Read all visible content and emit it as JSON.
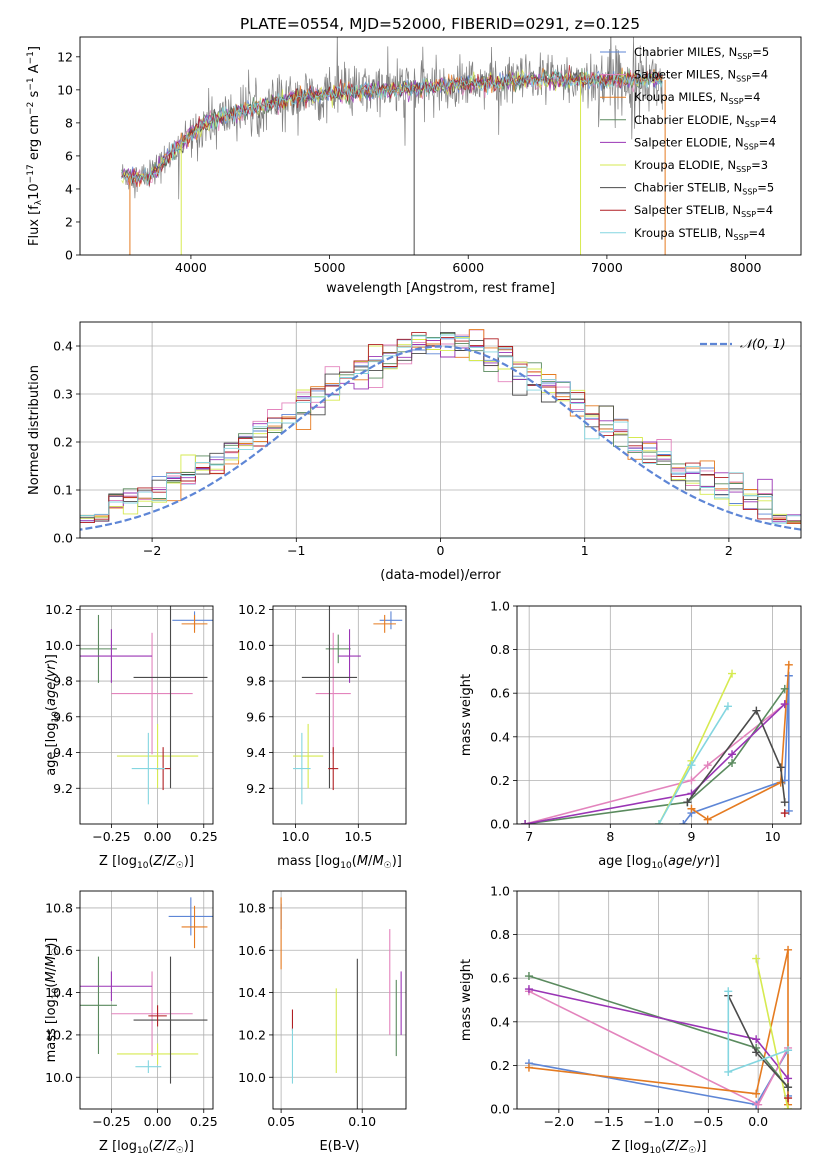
{
  "title": "PLATE=0554, MJD=52000, FIBERID=0291, z=0.125",
  "colors": {
    "Chabrier MILES": "#5e86d6",
    "Salpeter MILES": "#e384bd",
    "Kroupa MILES": "#e57b21",
    "Chabrier ELODIE": "#5a8a5e",
    "Salpeter ELODIE": "#9a35b5",
    "Kroupa ELODIE": "#d6ea50",
    "Chabrier STELIB": "#4b4b4b",
    "Salpeter STELIB": "#b01f23",
    "Kroupa STELIB": "#84d6e0",
    "gaussian": "#5e86d6"
  },
  "chart_data": [
    {
      "id": "spectrum",
      "type": "line",
      "xlabel": "wavelength [Angstrom, rest frame]",
      "ylabel": "Flux [f$_\\lambda$10$^{-17}$ erg cm$^{-2}$ s$^{-1}$ A$^{-1}$]",
      "xlim": [
        3200,
        8400
      ],
      "ylim": [
        0,
        13.2
      ],
      "xticks": [
        4000,
        5000,
        6000,
        7000,
        8000
      ],
      "yticks": [
        0,
        2,
        4,
        6,
        8,
        10,
        12
      ],
      "legend_position": "top-right",
      "legend": [
        {
          "name": "Chabrier MILES, N",
          "sub": "SSP",
          "tail": "=5"
        },
        {
          "name": "Salpeter MILES, N",
          "sub": "SSP",
          "tail": "=4"
        },
        {
          "name": "Kroupa MILES, N",
          "sub": "SSP",
          "tail": "=4"
        },
        {
          "name": "Chabrier ELODIE, N",
          "sub": "SSP",
          "tail": "=4"
        },
        {
          "name": "Salpeter ELODIE, N",
          "sub": "SSP",
          "tail": "=4"
        },
        {
          "name": "Kroupa ELODIE, N",
          "sub": "SSP",
          "tail": "=3"
        },
        {
          "name": "Chabrier STELIB, N",
          "sub": "SSP",
          "tail": "=5"
        },
        {
          "name": "Salpeter STELIB, N",
          "sub": "SSP",
          "tail": "=4"
        },
        {
          "name": "Kroupa STELIB, N",
          "sub": "SSP",
          "tail": "=4"
        }
      ],
      "continuum": [
        [
          3500,
          4.8
        ],
        [
          3700,
          4.7
        ],
        [
          3900,
          6.5
        ],
        [
          4100,
          8.0
        ],
        [
          4400,
          8.8
        ],
        [
          4800,
          9.6
        ],
        [
          5200,
          9.9
        ],
        [
          5600,
          10.1
        ],
        [
          6000,
          10.4
        ],
        [
          6500,
          10.6
        ],
        [
          7000,
          10.6
        ],
        [
          7400,
          10.6
        ]
      ],
      "data_range": [
        3500,
        7400
      ]
    },
    {
      "id": "residuals",
      "type": "histogram",
      "xlabel": "(data-model)/error",
      "ylabel": "Normed distribution",
      "xlim": [
        -2.5,
        2.5
      ],
      "ylim": [
        0,
        0.45
      ],
      "xticks": [
        -2,
        -1,
        0,
        1,
        2
      ],
      "xtick_labels": [
        "−2",
        "−1",
        "0",
        "1",
        "2"
      ],
      "yticks": [
        0.0,
        0.1,
        0.2,
        0.3,
        0.4
      ],
      "legend_position": "top-right",
      "legend_label": "𝒩(0, 1)",
      "bin_width": 0.1,
      "bin_start": -2.5
    },
    {
      "id": "age-vs-Z",
      "type": "errorbar",
      "xlabel": "Z [log10(Z/Z☉)]",
      "ylabel": "age  [log10(age/yr)]",
      "xlim": [
        -0.42,
        0.3
      ],
      "ylim": [
        9.0,
        10.22
      ],
      "xticks": [
        -0.25,
        0.0,
        0.25
      ],
      "xtick_labels": [
        "−0.25",
        "0.00",
        "0.25"
      ],
      "yticks": [
        9.2,
        9.4,
        9.6,
        9.8,
        10.0,
        10.2
      ],
      "ytick_labels": [
        "9.2",
        "9.4",
        "9.6",
        "9.8",
        "10.0",
        "10.2"
      ],
      "points": [
        {
          "series": "Chabrier MILES",
          "x": 0.2,
          "y": 10.14,
          "xerr": 0.12,
          "yerr": 0.05
        },
        {
          "series": "Kroupa MILES",
          "x": 0.2,
          "y": 10.12,
          "xerr": 0.07,
          "yerr": 0.05
        },
        {
          "series": "Salpeter MILES",
          "x": -0.03,
          "y": 9.73,
          "xerr": 0.22,
          "yerr": 0.34
        },
        {
          "series": "Chabrier ELODIE",
          "x": -0.32,
          "y": 9.98,
          "xerr": 0.1,
          "yerr": 0.19
        },
        {
          "series": "Salpeter ELODIE",
          "x": -0.25,
          "y": 9.94,
          "xerr": 0.22,
          "yerr": 0.15
        },
        {
          "series": "Kroupa ELODIE",
          "x": 0.0,
          "y": 9.38,
          "xerr": 0.22,
          "yerr": 0.18
        },
        {
          "series": "Chabrier STELIB",
          "x": 0.07,
          "y": 9.82,
          "xerr": 0.2,
          "yerr": 0.62
        },
        {
          "series": "Salpeter STELIB",
          "x": 0.03,
          "y": 9.31,
          "xerr": 0.04,
          "yerr": 0.12
        },
        {
          "series": "Kroupa STELIB",
          "x": -0.05,
          "y": 9.31,
          "xerr": 0.09,
          "yerr": 0.2
        }
      ]
    },
    {
      "id": "age-vs-mass",
      "type": "errorbar",
      "xlabel": "mass [log10(M/M☉)]",
      "ylabel": "",
      "xlim": [
        9.82,
        10.88
      ],
      "ylim": [
        9.0,
        10.22
      ],
      "xticks": [
        10.0,
        10.5
      ],
      "xtick_labels": [
        "10.0",
        "10.5"
      ],
      "yticks": [
        9.2,
        9.4,
        9.6,
        9.8,
        10.0,
        10.2
      ],
      "ytick_labels": [
        "9.2",
        "9.4",
        "9.6",
        "9.8",
        "10.0",
        "10.2"
      ],
      "points": [
        {
          "series": "Chabrier MILES",
          "x": 10.76,
          "y": 10.14,
          "xerr": 0.09,
          "yerr": 0.05
        },
        {
          "series": "Kroupa MILES",
          "x": 10.71,
          "y": 10.12,
          "xerr": 0.09,
          "yerr": 0.05
        },
        {
          "series": "Salpeter MILES",
          "x": 10.3,
          "y": 9.73,
          "xerr": 0.14,
          "yerr": 0.34
        },
        {
          "series": "Chabrier ELODIE",
          "x": 10.34,
          "y": 9.98,
          "xerr": 0.1,
          "yerr": 0.08
        },
        {
          "series": "Salpeter ELODIE",
          "x": 10.43,
          "y": 9.94,
          "xerr": 0.09,
          "yerr": 0.15
        },
        {
          "series": "Kroupa ELODIE",
          "x": 10.1,
          "y": 9.38,
          "xerr": 0.12,
          "yerr": 0.18
        },
        {
          "series": "Chabrier STELIB",
          "x": 10.27,
          "y": 9.82,
          "xerr": 0.22,
          "yerr": 0.62
        },
        {
          "series": "Salpeter STELIB",
          "x": 10.3,
          "y": 9.31,
          "xerr": 0.04,
          "yerr": 0.12
        },
        {
          "series": "Kroupa STELIB",
          "x": 10.05,
          "y": 9.31,
          "xerr": 0.07,
          "yerr": 0.2
        }
      ]
    },
    {
      "id": "weight-vs-age",
      "type": "line",
      "xlabel": "age  [log10(age/yr)]",
      "ylabel": "mass weight",
      "xlim": [
        6.85,
        10.35
      ],
      "ylim": [
        0,
        1.0
      ],
      "xticks": [
        7,
        8,
        9,
        10
      ],
      "yticks": [
        0.0,
        0.2,
        0.4,
        0.6,
        0.8,
        1.0
      ],
      "series": [
        {
          "name": "Chabrier MILES",
          "points": [
            [
              8.9,
              0.0
            ],
            [
              9.0,
              0.05
            ],
            [
              10.15,
              0.2
            ],
            [
              10.2,
              0.68
            ],
            [
              10.2,
              0.06
            ]
          ]
        },
        {
          "name": "Salpeter MILES",
          "points": [
            [
              6.95,
              0.0
            ],
            [
              9.0,
              0.2
            ],
            [
              9.2,
              0.27
            ],
            [
              10.15,
              0.55
            ]
          ]
        },
        {
          "name": "Kroupa MILES",
          "points": [
            [
              9.0,
              0.07
            ],
            [
              9.2,
              0.02
            ],
            [
              10.1,
              0.19
            ],
            [
              10.2,
              0.73
            ]
          ]
        },
        {
          "name": "Chabrier ELODIE",
          "points": [
            [
              6.95,
              0.0
            ],
            [
              8.95,
              0.1
            ],
            [
              9.5,
              0.28
            ],
            [
              10.15,
              0.62
            ]
          ]
        },
        {
          "name": "Salpeter ELODIE",
          "points": [
            [
              6.95,
              0.0
            ],
            [
              9.0,
              0.14
            ],
            [
              9.5,
              0.32
            ],
            [
              10.15,
              0.55
            ]
          ]
        },
        {
          "name": "Kroupa ELODIE",
          "points": [
            [
              8.6,
              0.0
            ],
            [
              9.0,
              0.29
            ],
            [
              9.5,
              0.69
            ]
          ]
        },
        {
          "name": "Chabrier STELIB",
          "points": [
            [
              8.95,
              0.1
            ],
            [
              9.8,
              0.52
            ],
            [
              10.1,
              0.26
            ],
            [
              10.15,
              0.1
            ]
          ]
        },
        {
          "name": "Salpeter STELIB",
          "points": [
            [
              10.15,
              0.05
            ]
          ]
        },
        {
          "name": "Kroupa STELIB",
          "points": [
            [
              8.6,
              0.0
            ],
            [
              9.0,
              0.27
            ],
            [
              9.45,
              0.54
            ]
          ]
        }
      ]
    },
    {
      "id": "mass-vs-Z",
      "type": "errorbar",
      "xlabel": "Z [log10(Z/Z☉)]",
      "ylabel": "mass [log10(M/M☉)]",
      "xlim": [
        -0.42,
        0.3
      ],
      "ylim": [
        9.85,
        10.88
      ],
      "xticks": [
        -0.25,
        0.0,
        0.25
      ],
      "xtick_labels": [
        "−0.25",
        "0.00",
        "0.25"
      ],
      "yticks": [
        10.0,
        10.2,
        10.4,
        10.6,
        10.8
      ],
      "ytick_labels": [
        "10.0",
        "10.2",
        "10.4",
        "10.6",
        "10.8"
      ],
      "points": [
        {
          "series": "Chabrier MILES",
          "x": 0.18,
          "y": 10.76,
          "xerr": 0.12,
          "yerr": 0.09
        },
        {
          "series": "Kroupa MILES",
          "x": 0.2,
          "y": 10.71,
          "xerr": 0.07,
          "yerr": 0.1
        },
        {
          "series": "Salpeter MILES",
          "x": -0.03,
          "y": 10.3,
          "xerr": 0.22,
          "yerr": 0.2
        },
        {
          "series": "Chabrier ELODIE",
          "x": -0.32,
          "y": 10.34,
          "xerr": 0.1,
          "yerr": 0.23
        },
        {
          "series": "Salpeter ELODIE",
          "x": -0.25,
          "y": 10.43,
          "xerr": 0.22,
          "yerr": 0.07
        },
        {
          "series": "Kroupa ELODIE",
          "x": 0.0,
          "y": 10.11,
          "xerr": 0.22,
          "yerr": 0.05
        },
        {
          "series": "Chabrier STELIB",
          "x": 0.07,
          "y": 10.27,
          "xerr": 0.2,
          "yerr": 0.3
        },
        {
          "series": "Salpeter STELIB",
          "x": 0.0,
          "y": 10.29,
          "xerr": 0.05,
          "yerr": 0.05
        },
        {
          "series": "Kroupa STELIB",
          "x": -0.05,
          "y": 10.05,
          "xerr": 0.07,
          "yerr": 0.03
        }
      ]
    },
    {
      "id": "mass-vs-EBV",
      "type": "errorbar",
      "xlabel": "E(B-V)",
      "ylabel": "",
      "xlim": [
        0.045,
        0.127
      ],
      "ylim": [
        9.85,
        10.88
      ],
      "xticks": [
        0.05,
        0.1
      ],
      "xtick_labels": [
        "0.05",
        "0.10"
      ],
      "yticks": [
        10.0,
        10.2,
        10.4,
        10.6,
        10.8
      ],
      "ytick_labels": [
        "10.0",
        "10.2",
        "10.4",
        "10.6",
        "10.8"
      ],
      "points": [
        {
          "series": "Chabrier MILES",
          "x": 0.05,
          "y": 10.76,
          "xerr": 0,
          "yerr": 0.06
        },
        {
          "series": "Kroupa MILES",
          "x": 0.05,
          "y": 10.68,
          "xerr": 0,
          "yerr": 0.17
        },
        {
          "series": "Salpeter MILES",
          "x": 0.117,
          "y": 10.45,
          "xerr": 0,
          "yerr": 0.25
        },
        {
          "series": "Chabrier ELODIE",
          "x": 0.121,
          "y": 10.28,
          "xerr": 0,
          "yerr": 0.18
        },
        {
          "series": "Salpeter ELODIE",
          "x": 0.124,
          "y": 10.35,
          "xerr": 0,
          "yerr": 0.15
        },
        {
          "series": "Kroupa ELODIE",
          "x": 0.084,
          "y": 10.22,
          "xerr": 0,
          "yerr": 0.2
        },
        {
          "series": "Chabrier STELIB",
          "x": 0.097,
          "y": 10.2,
          "xerr": 0,
          "yerr": 0.36
        },
        {
          "series": "Salpeter STELIB",
          "x": 0.057,
          "y": 10.27,
          "xerr": 0,
          "yerr": 0.05
        },
        {
          "series": "Kroupa STELIB",
          "x": 0.057,
          "y": 10.1,
          "xerr": 0,
          "yerr": 0.13
        }
      ]
    },
    {
      "id": "weight-vs-Z",
      "type": "line",
      "xlabel": "Z [log10(Z/Z☉)]",
      "ylabel": "mass weight",
      "xlim": [
        -2.42,
        0.43
      ],
      "ylim": [
        0,
        1.0
      ],
      "xticks": [
        -2.0,
        -1.5,
        -1.0,
        -0.5,
        0.0
      ],
      "xtick_labels": [
        "−2.0",
        "−1.5",
        "−1.0",
        "−0.5",
        "0.0"
      ],
      "yticks": [
        0.0,
        0.2,
        0.4,
        0.6,
        0.8,
        1.0
      ],
      "series": [
        {
          "name": "Chabrier MILES",
          "points": [
            [
              -2.3,
              0.21
            ],
            [
              -0.02,
              0.02
            ],
            [
              0.3,
              0.27
            ],
            [
              0.3,
              0.06
            ]
          ]
        },
        {
          "name": "Salpeter MILES",
          "points": [
            [
              -2.3,
              0.54
            ],
            [
              0.0,
              0.02
            ],
            [
              0.3,
              0.28
            ]
          ]
        },
        {
          "name": "Kroupa MILES",
          "points": [
            [
              -2.3,
              0.19
            ],
            [
              -0.02,
              0.07
            ],
            [
              0.3,
              0.73
            ],
            [
              0.3,
              0.02
            ]
          ]
        },
        {
          "name": "Chabrier ELODIE",
          "points": [
            [
              -2.3,
              0.61
            ],
            [
              -0.02,
              0.28
            ],
            [
              0.3,
              0.1
            ]
          ]
        },
        {
          "name": "Salpeter ELODIE",
          "points": [
            [
              -2.3,
              0.55
            ],
            [
              -0.02,
              0.32
            ],
            [
              0.3,
              0.14
            ]
          ]
        },
        {
          "name": "Kroupa ELODIE",
          "points": [
            [
              -0.02,
              0.69
            ],
            [
              0.3,
              0.0
            ]
          ]
        },
        {
          "name": "Chabrier STELIB",
          "points": [
            [
              -0.3,
              0.52
            ],
            [
              -0.02,
              0.26
            ],
            [
              0.3,
              0.1
            ]
          ]
        },
        {
          "name": "Salpeter STELIB",
          "points": [
            [
              0.3,
              0.05
            ]
          ]
        },
        {
          "name": "Kroupa STELIB",
          "points": [
            [
              -0.3,
              0.54
            ],
            [
              -0.3,
              0.17
            ],
            [
              0.3,
              0.27
            ]
          ]
        }
      ]
    }
  ]
}
